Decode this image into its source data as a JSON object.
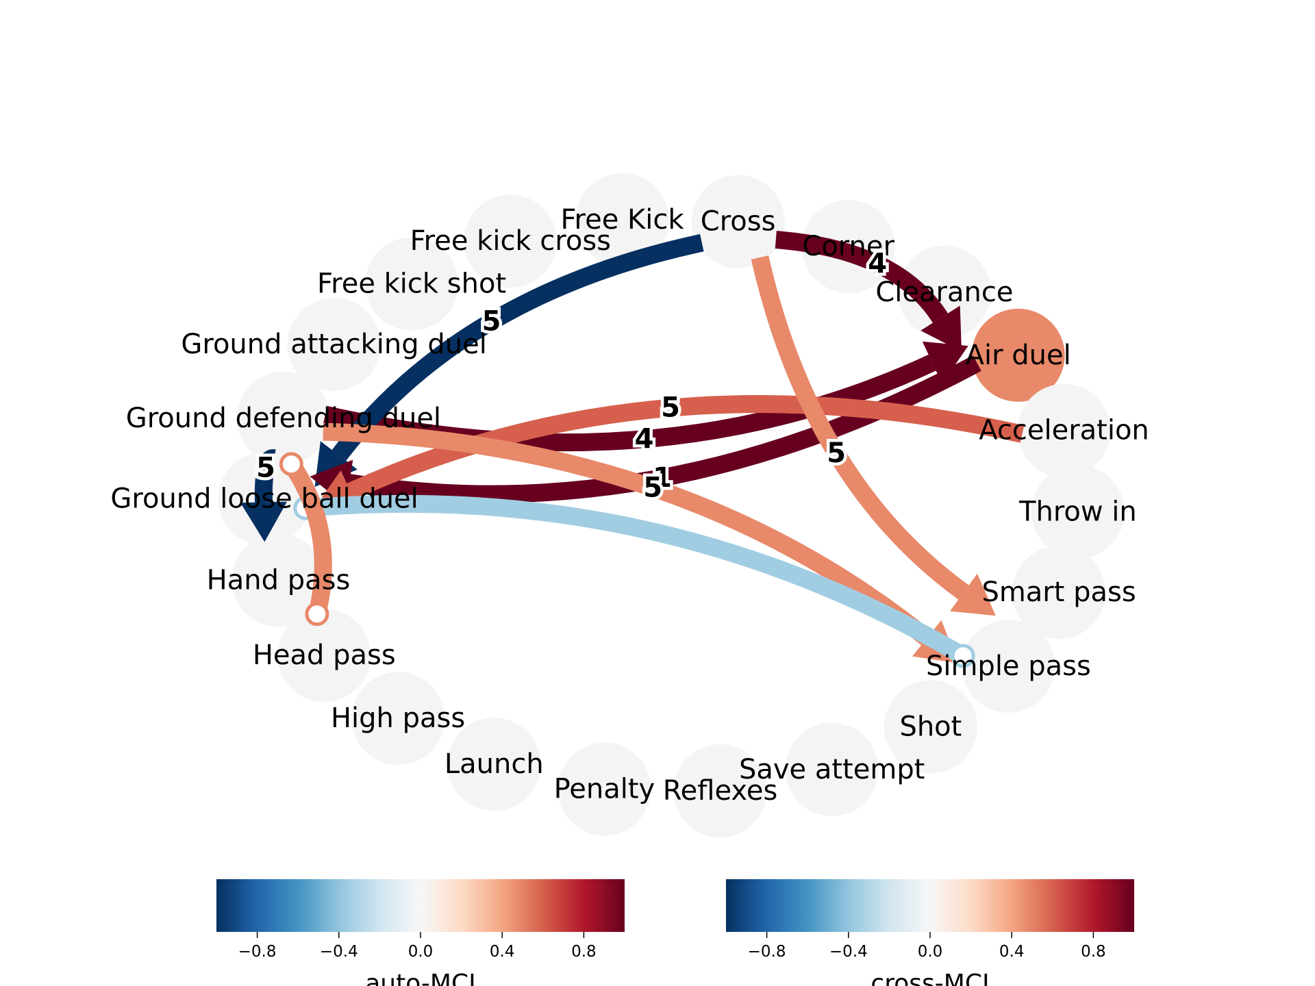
{
  "nodes": [
    {
      "id": "ground_attacking_duel",
      "label": "Ground attacking duel"
    },
    {
      "id": "free_kick_shot",
      "label": "Free kick shot"
    },
    {
      "id": "free_kick_cross",
      "label": "Free kick cross"
    },
    {
      "id": "free_kick",
      "label": "Free Kick"
    },
    {
      "id": "cross",
      "label": "Cross"
    },
    {
      "id": "corner",
      "label": "Corner"
    },
    {
      "id": "clearance",
      "label": "Clearance"
    },
    {
      "id": "air_duel",
      "label": "Air duel"
    },
    {
      "id": "acceleration",
      "label": "Acceleration"
    },
    {
      "id": "throw_in",
      "label": "Throw in"
    },
    {
      "id": "smart_pass",
      "label": "Smart pass"
    },
    {
      "id": "simple_pass",
      "label": "Simple pass"
    },
    {
      "id": "shot",
      "label": "Shot"
    },
    {
      "id": "save_attempt",
      "label": "Save attempt"
    },
    {
      "id": "reflexes",
      "label": "Reflexes"
    },
    {
      "id": "penalty",
      "label": "Penalty"
    },
    {
      "id": "launch",
      "label": "Launch"
    },
    {
      "id": "high_pass",
      "label": "High pass"
    },
    {
      "id": "head_pass",
      "label": "Head pass"
    },
    {
      "id": "hand_pass",
      "label": "Hand pass"
    },
    {
      "id": "ground_loose_ball_duel",
      "label": "Ground loose ball duel"
    },
    {
      "id": "ground_defending_duel",
      "label": "Ground defending duel"
    }
  ],
  "self_loops": [
    {
      "node": "air_duel",
      "value": 0.5,
      "color": "#e8896a"
    }
  ],
  "edges": [
    {
      "source": "ground_defending_duel",
      "target": "air_duel",
      "label": "4",
      "value": 1.0,
      "color": "#67001f",
      "arrow": "head"
    },
    {
      "source": "cross",
      "target": "air_duel",
      "label": "4",
      "value": 1.0,
      "color": "#67001f",
      "arrow": "head"
    },
    {
      "source": "cross",
      "target": "ground_loose_ball_duel",
      "label": "5",
      "value": -1.0,
      "color": "#053061",
      "arrow": "head"
    },
    {
      "source": "air_duel",
      "target": "ground_loose_ball_duel",
      "label": "1",
      "value": 1.0,
      "color": "#67001f",
      "arrow": "head"
    },
    {
      "source": "acceleration",
      "target": "ground_loose_ball_duel",
      "label": "5",
      "value": 0.7,
      "color": "#d6604d",
      "arrow": "head"
    },
    {
      "source": "ground_defending_duel",
      "target": "simple_pass",
      "label": "5",
      "value": 0.5,
      "color": "#e8896a",
      "arrow": "head"
    },
    {
      "source": "cross",
      "target": "simple_pass",
      "label": "5",
      "value": 0.5,
      "color": "#e8896a",
      "arrow": "head"
    },
    {
      "source": "ground_loose_ball_duel",
      "target": "simple_pass",
      "label": "",
      "value": -0.4,
      "color": "#a1cde2",
      "arrow": "circle"
    },
    {
      "source": "head_pass",
      "target": "ground_defending_duel",
      "label": "",
      "value": 0.5,
      "color": "#e8896a",
      "arrow": "circle"
    },
    {
      "source": "ground_loose_ball_duel",
      "target": "ground_defending_duel",
      "label": "5",
      "value": -1.0,
      "color": "#053061",
      "arrow": "head"
    }
  ],
  "colorbars": [
    {
      "label": "auto-MCI",
      "ticks": [
        "−0.8",
        "−0.4",
        "0.0",
        "0.4",
        "0.8"
      ]
    },
    {
      "label": "cross-MCI",
      "ticks": [
        "−0.8",
        "−0.4",
        "0.0",
        "0.4",
        "0.8"
      ]
    }
  ],
  "colors": {
    "node_fill": "#f4f4f4",
    "cmap": [
      "#053061",
      "#2166ac",
      "#4393c3",
      "#92c5de",
      "#d1e5f0",
      "#f7f7f7",
      "#fddbc7",
      "#f4a582",
      "#d6604d",
      "#b2182b",
      "#67001f"
    ]
  }
}
